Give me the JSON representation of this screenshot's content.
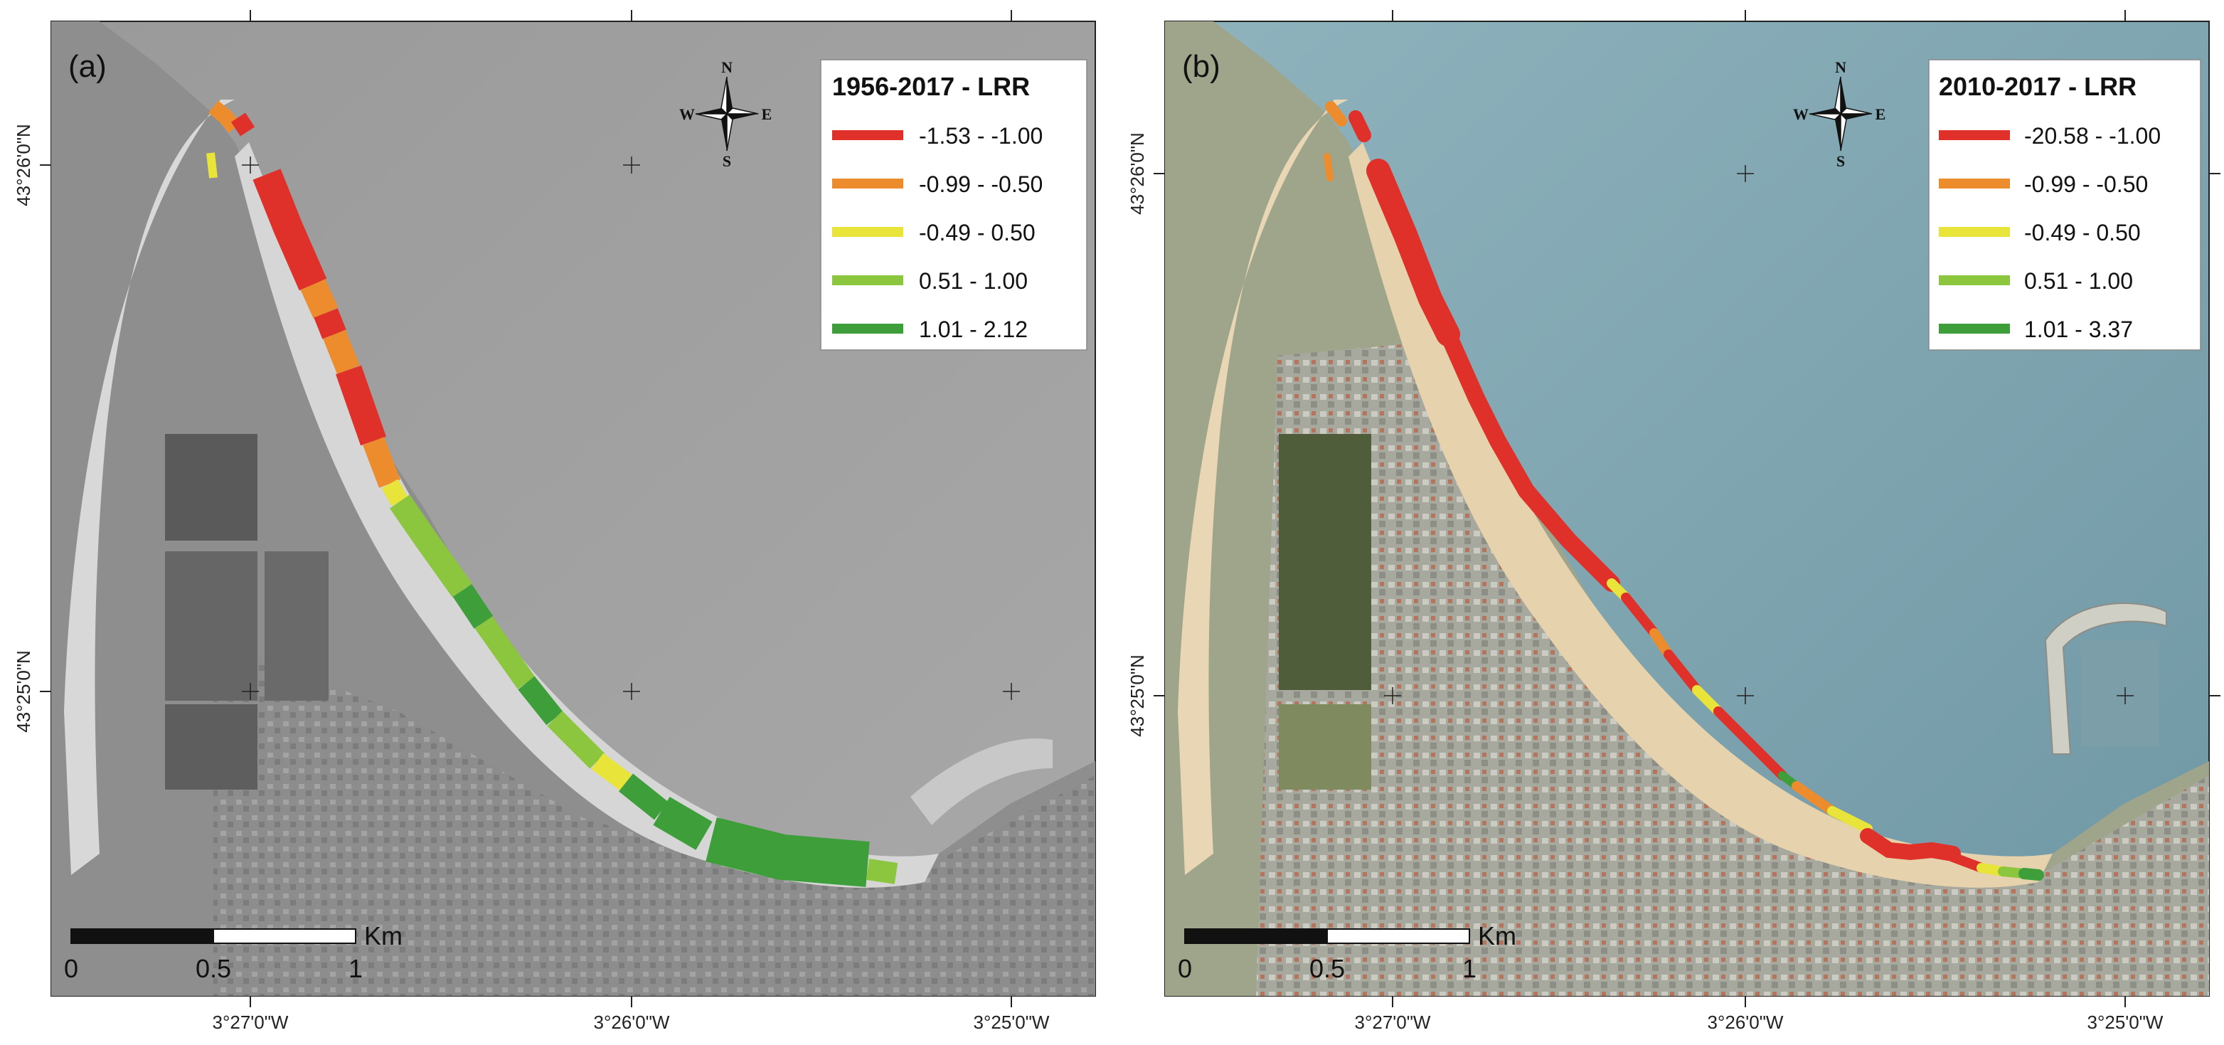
{
  "colors": {
    "class1": "#e0302a",
    "class2": "#ec8c2c",
    "class3": "#e8e43a",
    "class4": "#8cc63f",
    "class5": "#3e9e3a"
  },
  "maps": [
    {
      "label": "(a)",
      "legend": {
        "title": "1956-2017  -  LRR",
        "items": [
          "-1.53 - -1.00",
          "-0.99 - -0.50",
          "-0.49 - 0.50",
          "0.51 - 1.00",
          "1.01 - 2.12"
        ]
      },
      "coords": {
        "lat_top": "43°26'0\"N",
        "lat_bottom": "43°25'0\"N",
        "lon_left": "3°27'0\"W",
        "lon_mid": "3°26'0\"W",
        "lon_right": "3°25'0\"W"
      },
      "scale": {
        "unit": "Km",
        "t0": "0",
        "t1": "0.5",
        "t2": "1"
      },
      "compass": {
        "n": "N",
        "s": "S",
        "e": "E",
        "w": "W"
      }
    },
    {
      "label": "(b)",
      "legend": {
        "title": "2010-2017  -  LRR",
        "items": [
          "-20.58 - -1.00",
          "-0.99 - -0.50",
          "-0.49 - 0.50",
          "0.51 - 1.00",
          "1.01 - 3.37"
        ]
      },
      "coords": {
        "lat_top": "43°26'0\"N",
        "lat_bottom": "43°25'0\"N",
        "lon_left": "3°27'0\"W",
        "lon_mid": "3°26'0\"W",
        "lon_right": "3°25'0\"W"
      },
      "scale": {
        "unit": "Km",
        "t0": "0",
        "t1": "0.5",
        "t2": "1"
      },
      "compass": {
        "n": "N",
        "s": "S",
        "e": "E",
        "w": "W"
      }
    }
  ]
}
